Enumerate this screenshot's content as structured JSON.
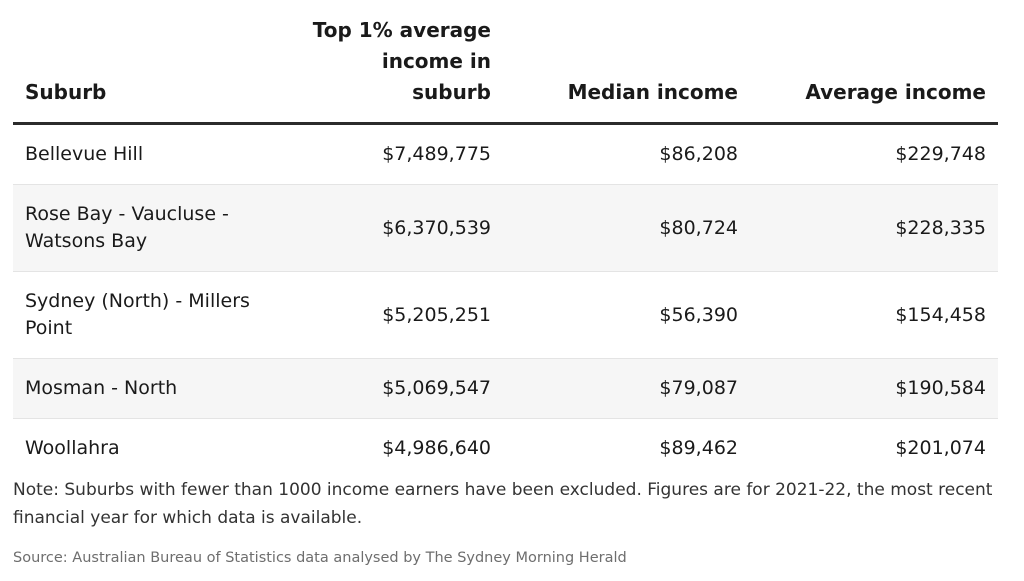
{
  "chart_data": {
    "type": "table",
    "columns": [
      "Suburb",
      "Top 1% average income in suburb",
      "Median income",
      "Average income"
    ],
    "rows": [
      [
        "Bellevue Hill",
        "$7,489,775",
        "$86,208",
        "$229,748"
      ],
      [
        "Rose Bay - Vaucluse - Watsons Bay",
        "$6,370,539",
        "$80,724",
        "$228,335"
      ],
      [
        "Sydney (North) - Millers Point",
        "$5,205,251",
        "$56,390",
        "$154,458"
      ],
      [
        "Mosman - North",
        "$5,069,547",
        "$79,087",
        "$190,584"
      ],
      [
        "Woollahra",
        "$4,986,640",
        "$89,462",
        "$201,074"
      ]
    ],
    "note": "Note: Suburbs with fewer than 1000 income earners have been excluded. Figures are for 2021-22, the most recent financial year for which data is available.",
    "source": "Source: Australian Bureau of Statistics data analysed by The Sydney Morning Herald"
  },
  "colors": {
    "header_rule": "#2b2b2b",
    "row_divider": "#e4e4e4",
    "shaded_row": "#f6f6f6",
    "text": "#1a1a1a",
    "source_text": "#6e6e6e"
  }
}
